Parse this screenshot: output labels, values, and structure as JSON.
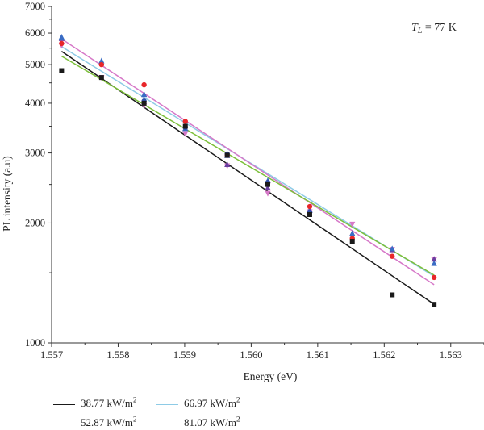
{
  "chart_data": {
    "type": "scatter",
    "title": "",
    "xlabel": "Energy (eV)",
    "ylabel": "PL intensity (a.u)",
    "xlim": [
      1.557,
      1.5635
    ],
    "ylim": [
      1000,
      7000
    ],
    "yscale": "log",
    "grid": false,
    "legend_position": "bottom",
    "xticks": [
      "1.557",
      "1.558",
      "1.559",
      "1.560",
      "1.561",
      "1.562",
      "1.563"
    ],
    "yticks": [
      "1000",
      "2000",
      "3000",
      "4000",
      "5000",
      "6000",
      "7000"
    ],
    "annotation": {
      "symbol": "T",
      "subscript": "L",
      "text": " = 77 K"
    },
    "x": [
      1.55715,
      1.55775,
      1.55839,
      1.55901,
      1.55964,
      1.56025,
      1.56088,
      1.56152,
      1.56212,
      1.56275
    ],
    "series": [
      {
        "name": "38.77 kW/m",
        "unit_superscript": "2",
        "color": "#1a1a1a",
        "marker": "square",
        "values": [
          4830,
          4640,
          4000,
          3500,
          2960,
          2500,
          2100,
          1800,
          1320,
          1250
        ],
        "fit": [
          5400,
          1250
        ]
      },
      {
        "name": "52.87 kW/m",
        "unit_superscript": "2",
        "color": "#d678c8",
        "marker": "triangle-down",
        "values": [
          5600,
          4650,
          3950,
          3360,
          2790,
          2380,
          2140,
          1990,
          1720,
          1620
        ],
        "fit": [
          5800,
          1400
        ]
      },
      {
        "name": "66.97 kW/m",
        "unit_superscript": "2",
        "color": "#8ecbe6",
        "marker": "triangle-up",
        "values": [
          5850,
          5100,
          4200,
          3450,
          2950,
          2550,
          2150,
          1880,
          1720,
          1580
        ],
        "fit": [
          5550,
          1470
        ]
      },
      {
        "name": "81.07 kW/m",
        "unit_superscript": "2",
        "color": "#7cbf3a",
        "marker": "circle",
        "values": [
          5700,
          5000,
          4450,
          3600,
          3000,
          2500,
          2200,
          1830,
          1650,
          1460
        ],
        "fit": [
          5250,
          1480
        ]
      }
    ],
    "extra_markers": [
      {
        "series": 2,
        "color": "#6a3fa0",
        "marker": "triangle-up",
        "values": [
          5800,
          5050,
          4200,
          3450,
          2800,
          2450,
          2150,
          1880,
          1710,
          1620
        ]
      },
      {
        "series": 1,
        "color": "#e8262a",
        "marker": "circle",
        "values": [
          5650,
          5000,
          4450,
          3600,
          2960,
          2520,
          2200,
          1830,
          1650,
          1460
        ]
      },
      {
        "series": 1,
        "color": "#2f4ea8",
        "marker": "circle",
        "values": [
          null,
          null,
          4050,
          3480,
          2980,
          2530,
          2130,
          null,
          null,
          null
        ]
      }
    ]
  }
}
